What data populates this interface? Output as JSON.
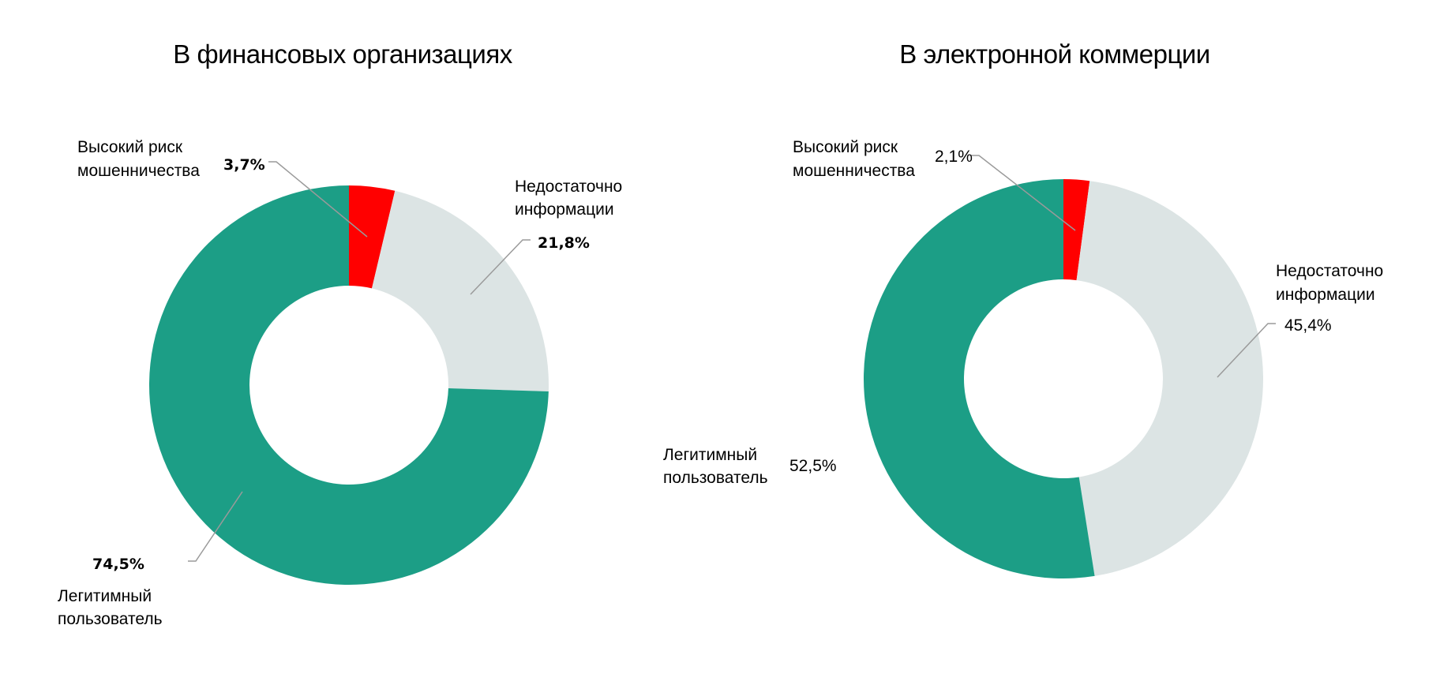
{
  "chart_data": [
    {
      "type": "pie",
      "title": "В финансовых организациях",
      "categories": [
        "Высокий риск мошенничества",
        "Недостаточно информации",
        "Легитимный пользователь"
      ],
      "values": [
        3.7,
        21.8,
        74.5
      ],
      "value_labels": [
        "3,7%",
        "21,8%",
        "74,5%"
      ],
      "label_lines": [
        [
          "Высокий риск",
          "мошенничества"
        ],
        [
          "Недостаточно",
          "информации"
        ],
        [
          "Легитимный",
          "пользователь"
        ]
      ],
      "colors": [
        "#ff0000",
        "#dce4e4",
        "#1c9e86"
      ],
      "donut": true,
      "value_labels_bold": true
    },
    {
      "type": "pie",
      "title": "В электронной коммерции",
      "categories": [
        "Высокий риск мошенничества",
        "Недостаточно информации",
        "Легитимный пользователь"
      ],
      "values": [
        2.1,
        45.4,
        52.5
      ],
      "value_labels": [
        "2,1%",
        "45,4%",
        "52,5%"
      ],
      "label_lines": [
        [
          "Высокий риск",
          "мошенничества"
        ],
        [
          "Недостаточно",
          "информации"
        ],
        [
          "Легитимный",
          "пользователь"
        ]
      ],
      "colors": [
        "#ff0000",
        "#dce4e4",
        "#1c9e86"
      ],
      "donut": true,
      "value_labels_bold": false
    }
  ]
}
